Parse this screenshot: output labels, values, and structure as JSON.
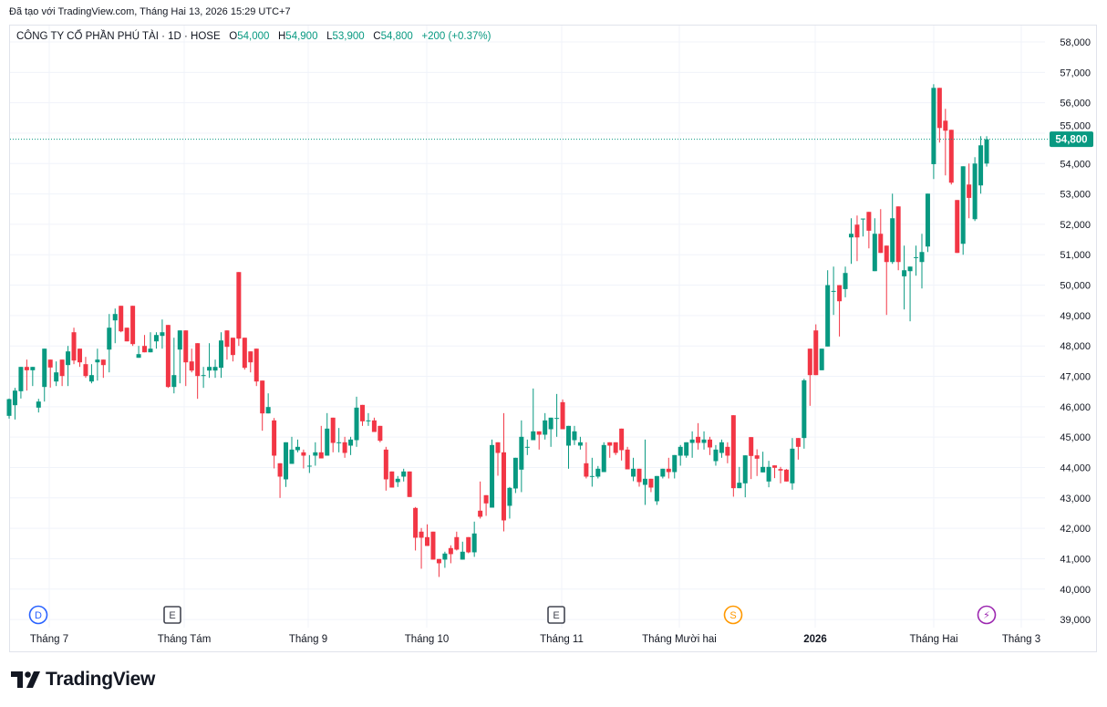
{
  "credit": "Đã tạo với TradingView.com, Tháng Hai 13, 2026 15:29 UTC+7",
  "legend": {
    "symbol": "CÔNG TY CỔ PHẦN PHÚ TÀI · 1D · HOSE",
    "o_label": "O",
    "o_value": "54,000",
    "h_label": "H",
    "h_value": "54,900",
    "l_label": "L",
    "l_value": "53,900",
    "c_label": "C",
    "c_value": "54,800",
    "change": "+200 (+0.37%)"
  },
  "last_price_label": "54,800",
  "logo_text": "TradingView",
  "colors": {
    "up": "#089981",
    "down": "#f23645",
    "grid": "#f0f3fa",
    "text": "#131722"
  },
  "events": [
    {
      "label": "D",
      "type": "dividend",
      "color": "#2962ff"
    },
    {
      "label": "E",
      "type": "earnings",
      "color": "#434651"
    },
    {
      "label": "E",
      "type": "earnings",
      "color": "#434651"
    },
    {
      "label": "S",
      "type": "split",
      "color": "#ff9800"
    },
    {
      "label": "⚡",
      "type": "news",
      "color": "#9c27b0"
    }
  ],
  "chart_data": {
    "type": "candlestick",
    "title": "CÔNG TY CỔ PHẦN PHÚ TÀI · 1D · HOSE",
    "ylim": [
      39000,
      58000
    ],
    "y_ticks": [
      "39,000",
      "40,000",
      "41,000",
      "42,000",
      "43,000",
      "44,000",
      "45,000",
      "46,000",
      "47,000",
      "48,000",
      "49,000",
      "50,000",
      "51,000",
      "52,000",
      "53,000",
      "54,000",
      "55,000",
      "56,000",
      "57,000",
      "58,000"
    ],
    "y_tick_values": [
      39000,
      40000,
      41000,
      42000,
      43000,
      44000,
      45000,
      46000,
      47000,
      48000,
      49000,
      50000,
      51000,
      52000,
      53000,
      54000,
      55000,
      56000,
      57000,
      58000
    ],
    "x_ticks": [
      "Tháng 7",
      "Tháng Tám",
      "Tháng 9",
      "Tháng 10",
      "Tháng 11",
      "Tháng Mười hai",
      "2026",
      "Tháng Hai",
      "Tháng 3"
    ],
    "last_price": 54800,
    "ohlc_fields": [
      "open",
      "high",
      "low",
      "close"
    ],
    "ohlc": [
      [
        45700,
        46270,
        45610,
        46250
      ],
      [
        46050,
        46620,
        45580,
        46530
      ],
      [
        46510,
        47310,
        46270,
        47310
      ],
      [
        47310,
        47550,
        46530,
        47200
      ],
      [
        47200,
        47310,
        46680,
        47310
      ],
      [
        45970,
        46260,
        45810,
        46170
      ],
      [
        46650,
        47910,
        46170,
        47910
      ],
      [
        47550,
        47550,
        46630,
        47290
      ],
      [
        46830,
        47490,
        46680,
        47130
      ],
      [
        47550,
        47550,
        46680,
        47010
      ],
      [
        47370,
        48000,
        46680,
        47820
      ],
      [
        48450,
        48600,
        47400,
        47520
      ],
      [
        47910,
        47910,
        47310,
        47460
      ],
      [
        47400,
        47640,
        46950,
        47010
      ],
      [
        46830,
        47400,
        46770,
        47040
      ],
      [
        47460,
        47910,
        46860,
        47550
      ],
      [
        47550,
        47550,
        46950,
        47370
      ],
      [
        47880,
        49050,
        47130,
        48600
      ],
      [
        48840,
        49230,
        48090,
        49050
      ],
      [
        49320,
        49320,
        48450,
        48480
      ],
      [
        48600,
        48600,
        48150,
        48150
      ],
      [
        49320,
        49320,
        48000,
        48060
      ],
      [
        47610,
        48000,
        47610,
        47730
      ],
      [
        48000,
        48360,
        47790,
        47790
      ],
      [
        47790,
        48450,
        47790,
        47910
      ],
      [
        48150,
        48450,
        47910,
        48360
      ],
      [
        48330,
        48870,
        47910,
        48450
      ],
      [
        48690,
        48690,
        46620,
        46650
      ],
      [
        46650,
        48270,
        46440,
        47040
      ],
      [
        47880,
        48510,
        46770,
        48510
      ],
      [
        48510,
        48510,
        46680,
        47460
      ],
      [
        47490,
        47910,
        47130,
        47190
      ],
      [
        48090,
        48090,
        46260,
        47010
      ],
      [
        47010,
        47310,
        46620,
        47040
      ],
      [
        47190,
        48090,
        46950,
        47310
      ],
      [
        47190,
        47550,
        46950,
        47310
      ],
      [
        47280,
        48450,
        46950,
        48180
      ],
      [
        48510,
        48510,
        47550,
        47970
      ],
      [
        48270,
        48270,
        47490,
        47700
      ],
      [
        50430,
        50430,
        48000,
        48240
      ],
      [
        48270,
        48270,
        47220,
        47280
      ],
      [
        47820,
        47820,
        47130,
        47460
      ],
      [
        47910,
        47910,
        46680,
        46830
      ],
      [
        46860,
        46860,
        45210,
        45780
      ],
      [
        45780,
        46440,
        45780,
        45990
      ],
      [
        45550,
        45630,
        43970,
        44390
      ],
      [
        44140,
        44140,
        43000,
        43700
      ],
      [
        43610,
        44830,
        43360,
        44830
      ],
      [
        44120,
        45010,
        44120,
        44590
      ],
      [
        44570,
        44920,
        44500,
        44680
      ],
      [
        44500,
        44590,
        43970,
        44390
      ],
      [
        44040,
        44410,
        43820,
        44060
      ],
      [
        44390,
        44830,
        44060,
        44500
      ],
      [
        44500,
        45370,
        44300,
        44300
      ],
      [
        44390,
        45790,
        44390,
        45280
      ],
      [
        45640,
        45640,
        44500,
        44810
      ],
      [
        44810,
        45300,
        44500,
        44830
      ],
      [
        44830,
        45010,
        44320,
        44480
      ],
      [
        44720,
        45010,
        44410,
        44920
      ],
      [
        44900,
        46330,
        44680,
        45970
      ],
      [
        46060,
        46060,
        45370,
        45520
      ],
      [
        45540,
        45790,
        45370,
        45550
      ],
      [
        45550,
        45640,
        45170,
        45170
      ],
      [
        45370,
        45370,
        44830,
        44880
      ],
      [
        44590,
        44680,
        43240,
        43610
      ],
      [
        43870,
        43870,
        43340,
        43340
      ],
      [
        43520,
        43720,
        43360,
        43630
      ],
      [
        43700,
        43960,
        43540,
        43870
      ],
      [
        43870,
        43870,
        43030,
        43030
      ],
      [
        42670,
        42700,
        41270,
        41690
      ],
      [
        41890,
        42010,
        40670,
        41690
      ],
      [
        41710,
        42130,
        41420,
        41420
      ],
      [
        41890,
        41890,
        40970,
        40970
      ],
      [
        40990,
        40990,
        40400,
        40850
      ],
      [
        40970,
        41230,
        40700,
        41170
      ],
      [
        41350,
        41440,
        40850,
        41150
      ],
      [
        41710,
        41890,
        41270,
        41300
      ],
      [
        40970,
        41560,
        40970,
        41230
      ],
      [
        41710,
        41710,
        41180,
        41210
      ],
      [
        41210,
        42220,
        41060,
        41830
      ],
      [
        42580,
        43540,
        42320,
        42380
      ],
      [
        43090,
        43090,
        42410,
        42820
      ],
      [
        42680,
        44920,
        42680,
        44740
      ],
      [
        44830,
        44830,
        43730,
        44480
      ],
      [
        44500,
        45790,
        41900,
        42260
      ],
      [
        42740,
        43360,
        42320,
        43330
      ],
      [
        43310,
        44320,
        43160,
        44320
      ],
      [
        43930,
        45550,
        43190,
        45010
      ],
      [
        44660,
        44920,
        44410,
        44680
      ],
      [
        44900,
        46600,
        44900,
        45190
      ],
      [
        45190,
        45190,
        44590,
        45080
      ],
      [
        45080,
        45790,
        44920,
        45550
      ],
      [
        45260,
        45640,
        44680,
        45640
      ],
      [
        45610,
        46420,
        45010,
        45630
      ],
      [
        46150,
        46240,
        45260,
        45260
      ],
      [
        44720,
        45370,
        43960,
        45370
      ],
      [
        44900,
        45370,
        44740,
        45190
      ],
      [
        44720,
        45010,
        44590,
        44830
      ],
      [
        44140,
        44830,
        43640,
        43700
      ],
      [
        43700,
        44320,
        43370,
        43720
      ],
      [
        43700,
        44050,
        43640,
        43960
      ],
      [
        43850,
        44830,
        43850,
        44740
      ],
      [
        44830,
        44830,
        44320,
        44720
      ],
      [
        44830,
        44830,
        44410,
        44480
      ],
      [
        45280,
        45280,
        44230,
        44570
      ],
      [
        44590,
        44680,
        43940,
        43940
      ],
      [
        43700,
        44320,
        43550,
        43960
      ],
      [
        43960,
        43960,
        43370,
        43520
      ],
      [
        43430,
        44920,
        42770,
        43630
      ],
      [
        43630,
        43630,
        43190,
        43340
      ],
      [
        42890,
        43720,
        42770,
        43720
      ],
      [
        43700,
        43960,
        43640,
        43960
      ],
      [
        43960,
        44320,
        43640,
        43850
      ],
      [
        43850,
        44410,
        43640,
        44410
      ],
      [
        44390,
        44740,
        44060,
        44680
      ],
      [
        44390,
        44830,
        44320,
        44830
      ],
      [
        44810,
        45190,
        44320,
        44920
      ],
      [
        45010,
        45460,
        44590,
        44810
      ],
      [
        44810,
        45190,
        44590,
        44920
      ],
      [
        44920,
        45010,
        44410,
        44660
      ],
      [
        44210,
        44740,
        44060,
        44590
      ],
      [
        44480,
        44920,
        44320,
        44830
      ],
      [
        44680,
        44830,
        44140,
        44390
      ],
      [
        45720,
        45720,
        43040,
        43320
      ],
      [
        43320,
        44020,
        43320,
        43500
      ],
      [
        43480,
        44400,
        43020,
        44400
      ],
      [
        45000,
        45000,
        43620,
        44380
      ],
      [
        44400,
        44600,
        43720,
        44290
      ],
      [
        43840,
        44520,
        43840,
        44020
      ],
      [
        43540,
        44220,
        43350,
        44020
      ],
      [
        44070,
        44070,
        43650,
        43990
      ],
      [
        43950,
        44020,
        43480,
        43900
      ],
      [
        43930,
        43950,
        43540,
        43540
      ],
      [
        43480,
        44970,
        43270,
        44620
      ],
      [
        44970,
        44970,
        44260,
        44680
      ],
      [
        44970,
        46920,
        44620,
        46870
      ],
      [
        47910,
        47910,
        46030,
        47040
      ],
      [
        48510,
        48710,
        47040,
        47040
      ],
      [
        47200,
        47910,
        47200,
        47910
      ],
      [
        47980,
        50490,
        47980,
        50000
      ],
      [
        49790,
        50610,
        49020,
        49810
      ],
      [
        50000,
        50000,
        48310,
        49470
      ],
      [
        49870,
        50610,
        49600,
        50400
      ],
      [
        51570,
        52200,
        50700,
        51690
      ],
      [
        51990,
        52290,
        50790,
        51570
      ],
      [
        52170,
        52190,
        51600,
        52190
      ],
      [
        52410,
        52410,
        51210,
        51790
      ],
      [
        50460,
        52200,
        50460,
        51690
      ],
      [
        51690,
        52500,
        51060,
        51060
      ],
      [
        51300,
        51300,
        49020,
        50760
      ],
      [
        50760,
        53010,
        50700,
        52200
      ],
      [
        52590,
        52590,
        50490,
        50760
      ],
      [
        50290,
        51300,
        49200,
        50490
      ],
      [
        50460,
        50610,
        48810,
        50610
      ],
      [
        50900,
        51300,
        50310,
        50920
      ],
      [
        50760,
        51690,
        49890,
        51090
      ],
      [
        51270,
        53010,
        51090,
        53010
      ],
      [
        53980,
        56610,
        53490,
        56490
      ],
      [
        56490,
        56490,
        54690,
        55170
      ],
      [
        55410,
        55800,
        53610,
        55080
      ],
      [
        55110,
        55110,
        53310,
        53370
      ],
      [
        52800,
        52800,
        51060,
        51060
      ],
      [
        51360,
        53910,
        51000,
        53910
      ],
      [
        53310,
        54000,
        52200,
        52870
      ],
      [
        52170,
        54210,
        52110,
        54000
      ],
      [
        53280,
        54900,
        53010,
        54600
      ],
      [
        54000,
        54900,
        53900,
        54800
      ]
    ]
  }
}
